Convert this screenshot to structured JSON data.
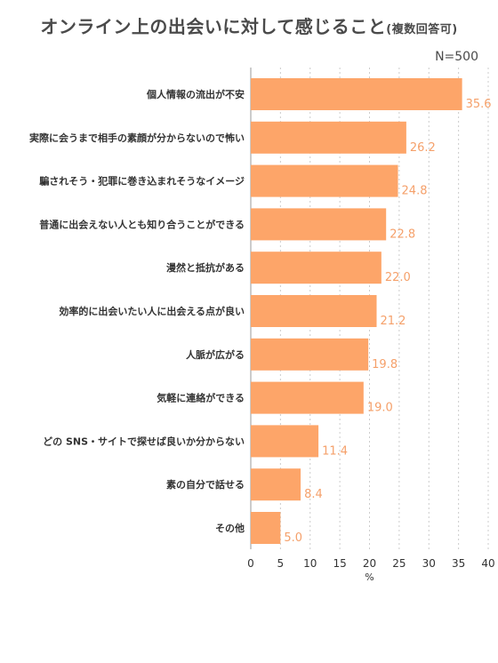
{
  "title": "オンライン上の出会いに対して感じること",
  "subtitle": "(複数回答可)",
  "sample_size": "N=500",
  "colors": {
    "bar": "#fda569",
    "value_text": "#f5a06a",
    "grid": "#cccccc"
  },
  "chart_data": {
    "type": "bar",
    "orientation": "horizontal",
    "categories": [
      "個人情報の流出が不安",
      "実際に会うまで相手の素顔が分からないので怖い",
      "騙されそう・犯罪に巻き込まれそうなイメージ",
      "普通に出会えない人とも知り合うことができる",
      "漫然と抵抗がある",
      "効率的に出会いたい人に出会える点が良い",
      "人脈が広がる",
      "気軽に連絡ができる",
      "どの SNS・サイトで探せば良いか分からない",
      "素の自分で話せる",
      "その他"
    ],
    "values": [
      35.6,
      26.2,
      24.8,
      22.8,
      22.0,
      21.2,
      19.8,
      19.0,
      11.4,
      8.4,
      5.0
    ],
    "value_labels": [
      "35.6",
      "26.2",
      "24.8",
      "22.8",
      "22.0",
      "21.2",
      "19.8",
      "19.0",
      "11.4",
      "8.4",
      "5.0"
    ],
    "xlim": [
      0,
      40
    ],
    "xticks": [
      "0",
      "5",
      "10",
      "15",
      "20",
      "25",
      "30",
      "35",
      "40"
    ],
    "xlabel": "%",
    "grid": true
  }
}
